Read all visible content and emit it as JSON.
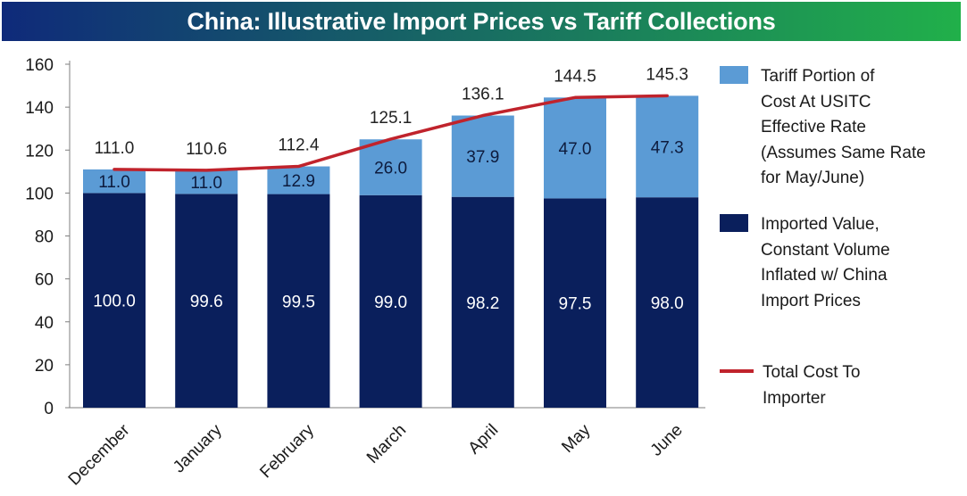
{
  "colors": {
    "title_bg_left": "#0f2a7a",
    "title_bg_right": "#21b04a",
    "imported": "#0a1f5c",
    "tariff": "#5b9bd5",
    "total_line": "#c0232c",
    "inner_label": "#ffffff",
    "outer_label": "#222222"
  },
  "chart_data": {
    "type": "bar",
    "stacked": true,
    "title": "China: Illustrative Import Prices vs Tariff Collections",
    "categories": [
      "December",
      "January",
      "February",
      "March",
      "April",
      "May",
      "June"
    ],
    "series": [
      {
        "key": "imported",
        "name": "Imported Value, Constant Volume Inflated w/ China Import Prices",
        "values": [
          100.0,
          99.6,
          99.5,
          99.0,
          98.2,
          97.5,
          98.0
        ],
        "labels": [
          "100.0",
          "99.6",
          "99.5",
          "99.0",
          "98.2",
          "97.5",
          "98.0"
        ]
      },
      {
        "key": "tariff",
        "name": "Tariff Portion of Cost At USITC Effective Rate (Assumes Same Rate for May/June)",
        "values": [
          11.0,
          11.0,
          12.9,
          26.0,
          37.9,
          47.0,
          47.3
        ],
        "labels": [
          "11.0",
          "11.0",
          "12.9",
          "26.0",
          "37.9",
          "47.0",
          "47.3"
        ]
      }
    ],
    "line": {
      "name": "Total Cost To Importer",
      "values": [
        111.0,
        110.6,
        112.4,
        125.1,
        136.1,
        144.5,
        145.3
      ],
      "labels": [
        "111.0",
        "110.6",
        "112.4",
        "125.1",
        "136.1",
        "144.5",
        "145.3"
      ]
    },
    "ylim": [
      0,
      160
    ],
    "y_ticks": [
      "0",
      "20",
      "40",
      "60",
      "80",
      "100",
      "120",
      "140",
      "160"
    ],
    "grid": false,
    "legend_position": "right"
  },
  "legend": {
    "tariff_lines": [
      "Tariff Portion of",
      "Cost At USITC",
      "Effective Rate",
      "(Assumes Same Rate",
      "for May/June)"
    ],
    "imported_lines": [
      "Imported Value,",
      "Constant Volume",
      "Inflated w/ China",
      "Import Prices"
    ],
    "total_lines": [
      "Total Cost To",
      "Importer"
    ]
  }
}
